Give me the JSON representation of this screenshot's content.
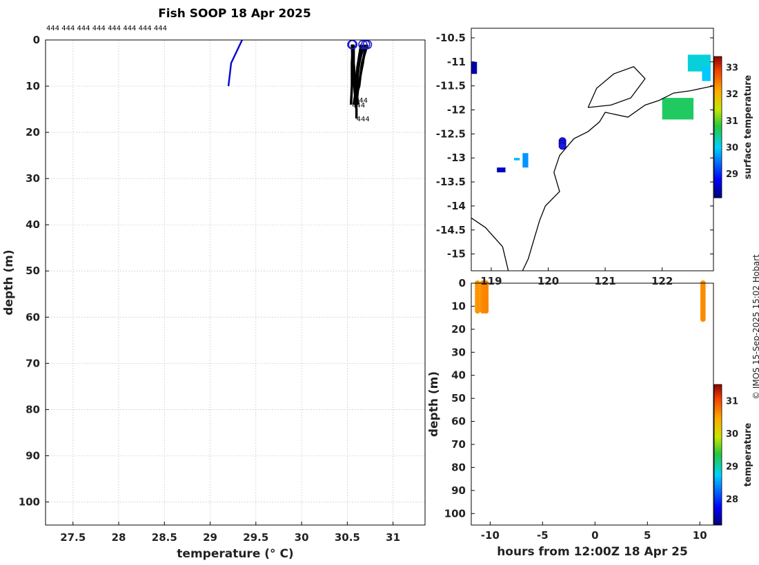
{
  "title": "Fish SOOP 18 Apr 2025",
  "watermark": "© IMOS 15-Sep-2025 15:02 Hobart",
  "profile_id_labels": "444 444 444 444 444 444 444 444",
  "profile_end_label": "444",
  "chart_data": [
    {
      "type": "line",
      "panel": "temperature-profile",
      "xlabel": "temperature (° C)",
      "ylabel": "depth (m)",
      "xlim": [
        27.2,
        31.35
      ],
      "ylim": [
        105,
        0
      ],
      "xticks": [
        27.5,
        28,
        28.5,
        29,
        29.5,
        30,
        30.5,
        31
      ],
      "yticks": [
        0,
        10,
        20,
        30,
        40,
        50,
        60,
        70,
        80,
        90,
        100
      ],
      "grid": true,
      "series": [
        {
          "color": "#0a0ad0",
          "points": [
            [
              29.35,
              0
            ],
            [
              29.23,
              5
            ],
            [
              29.2,
              10
            ]
          ]
        },
        {
          "color": "#000000",
          "points": [
            [
              30.56,
              1
            ],
            [
              30.55,
              5
            ],
            [
              30.55,
              10
            ],
            [
              30.54,
              14
            ]
          ]
        },
        {
          "color": "#000000",
          "points": [
            [
              30.57,
              1
            ],
            [
              30.57,
              5
            ],
            [
              30.59,
              10
            ],
            [
              30.62,
              14
            ]
          ]
        },
        {
          "color": "#000000",
          "points": [
            [
              30.68,
              1
            ],
            [
              30.63,
              5
            ],
            [
              30.6,
              10
            ],
            [
              30.57,
              14
            ]
          ]
        },
        {
          "color": "#000000",
          "points": [
            [
              30.7,
              1
            ],
            [
              30.67,
              5
            ],
            [
              30.62,
              10
            ],
            [
              30.6,
              14
            ]
          ]
        },
        {
          "color": "#000000",
          "points": [
            [
              30.72,
              1
            ],
            [
              30.66,
              5
            ],
            [
              30.63,
              10
            ],
            [
              30.58,
              13
            ]
          ]
        },
        {
          "color": "#000000",
          "points": [
            [
              30.65,
              1
            ],
            [
              30.61,
              6
            ],
            [
              30.59,
              12
            ],
            [
              30.58,
              14
            ]
          ]
        },
        {
          "color": "#000000",
          "points": [
            [
              30.55,
              1
            ],
            [
              30.56,
              6
            ],
            [
              30.58,
              11
            ],
            [
              30.6,
              15
            ],
            [
              30.6,
              17
            ]
          ]
        }
      ],
      "markers": [
        [
          30.55,
          1
        ],
        [
          30.56,
          1
        ],
        [
          30.67,
          1
        ],
        [
          30.7,
          1
        ],
        [
          30.72,
          1
        ]
      ]
    },
    {
      "type": "heatmap",
      "panel": "surface-temperature-map",
      "colorbar_label": "surface temperature",
      "colorbar_range": [
        28.1,
        33.4
      ],
      "colorbar_ticks": [
        29,
        30,
        31,
        32,
        33
      ],
      "xlim": [
        118.65,
        122.9
      ],
      "ylim": [
        -15.35,
        -10.3
      ],
      "xticks": [
        119,
        120,
        121,
        122
      ],
      "xticklabels": [
        "119",
        "120",
        "121",
        "122"
      ],
      "yticks": [
        -10.5,
        -11,
        -11.5,
        -12,
        -12.5,
        -13,
        -13.5,
        -14,
        -14.5,
        -15
      ],
      "yticklabels": [
        "-10.5",
        "-11",
        "-11.5",
        "-12",
        "-12.5",
        "-13",
        "-13.5",
        "-14",
        "-14.5",
        "-15"
      ],
      "positions": [
        [
          120.25,
          -12.65
        ],
        [
          120.25,
          -12.7
        ],
        [
          120.25,
          -12.75
        ]
      ],
      "patches": [
        {
          "lon": [
            122.0,
            122.55
          ],
          "lat": [
            -12.2,
            -11.75
          ],
          "temp": 30.6
        },
        {
          "lon": [
            122.45,
            122.85
          ],
          "lat": [
            -11.2,
            -10.85
          ],
          "temp": 30.1
        },
        {
          "lon": [
            122.7,
            122.85
          ],
          "lat": [
            -11.4,
            -11.1
          ],
          "temp": 29.9
        },
        {
          "lon": [
            118.65,
            118.75
          ],
          "lat": [
            -11.25,
            -11.0
          ],
          "temp": 28.3
        },
        {
          "lon": [
            119.1,
            119.25
          ],
          "lat": [
            -13.3,
            -13.2
          ],
          "temp": 28.4
        },
        {
          "lon": [
            119.55,
            119.65
          ],
          "lat": [
            -13.2,
            -12.9
          ],
          "temp": 29.6
        },
        {
          "lon": [
            119.4,
            119.5
          ],
          "lat": [
            -13.05,
            -13.0
          ],
          "temp": 29.8
        }
      ]
    },
    {
      "type": "scatter",
      "panel": "depth-time",
      "xlabel": "hours from 12:00Z 18 Apr 25",
      "ylabel": "depth (m)",
      "xlim": [
        -11.8,
        11.3
      ],
      "ylim": [
        105,
        0
      ],
      "xticks": [
        -10,
        -5,
        0,
        5,
        10
      ],
      "yticks": [
        0,
        10,
        20,
        30,
        40,
        50,
        60,
        70,
        80,
        90,
        100
      ],
      "colorbar_label": "temperature",
      "colorbar_range": [
        27.2,
        31.5
      ],
      "colorbar_ticks": [
        28,
        29,
        30,
        31
      ],
      "columns": [
        {
          "x": -11.2,
          "depth_max": 13,
          "temp": 30.55
        },
        {
          "x": -10.7,
          "depth_max": 13,
          "temp": 30.6
        },
        {
          "x": -10.4,
          "depth_max": 13,
          "temp": 30.65
        },
        {
          "x": 10.3,
          "depth_max": 16,
          "temp": 30.6
        }
      ]
    }
  ]
}
